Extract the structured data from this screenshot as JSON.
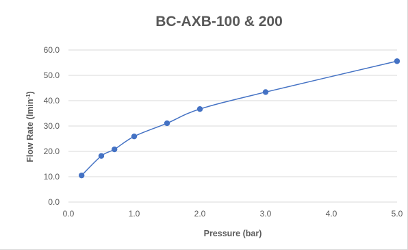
{
  "chart_data": {
    "type": "scatter",
    "title": "BC-AXB-100 & 200",
    "xlabel": "Pressure (bar)",
    "ylabel_main": "Flow Rate (lmin",
    "ylabel_sup": "-1",
    "ylabel_close": ")",
    "xlim": [
      0,
      5
    ],
    "ylim": [
      0,
      60
    ],
    "x_ticks": [
      "0.0",
      "1.0",
      "2.0",
      "3.0",
      "4.0",
      "5.0"
    ],
    "y_ticks": [
      "0.0",
      "10.0",
      "20.0",
      "30.0",
      "40.0",
      "50.0",
      "60.0"
    ],
    "grid": true,
    "legend": "none",
    "series": [
      {
        "points": [
          {
            "x": 0.2,
            "y": 10.5
          },
          {
            "x": 0.5,
            "y": 18.2
          },
          {
            "x": 0.7,
            "y": 20.8
          },
          {
            "x": 1.0,
            "y": 25.9
          },
          {
            "x": 1.5,
            "y": 31.1
          },
          {
            "x": 2.0,
            "y": 36.7
          },
          {
            "x": 3.0,
            "y": 43.4
          },
          {
            "x": 5.0,
            "y": 55.6
          }
        ]
      }
    ],
    "colors": {
      "series": "#4472c4",
      "grid": "#d9d9d9",
      "text": "#595959"
    }
  }
}
